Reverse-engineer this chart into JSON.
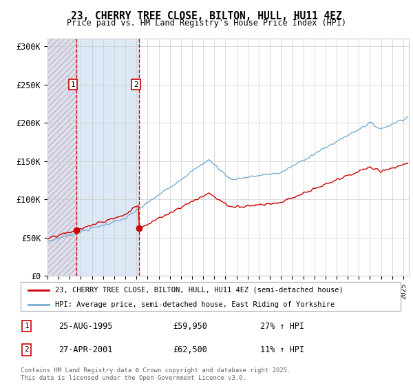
{
  "title": "23, CHERRY TREE CLOSE, BILTON, HULL, HU11 4EZ",
  "subtitle": "Price paid vs. HM Land Registry's House Price Index (HPI)",
  "ylim": [
    0,
    310000
  ],
  "yticks": [
    0,
    50000,
    100000,
    150000,
    200000,
    250000,
    300000
  ],
  "ytick_labels": [
    "£0",
    "£50K",
    "£100K",
    "£150K",
    "£200K",
    "£250K",
    "£300K"
  ],
  "sale1_year": 1995,
  "sale1_month": 8,
  "sale1_price": 59950,
  "sale1_date_str": "25-AUG-1995",
  "sale1_hpi_pct": "27% ↑ HPI",
  "sale2_year": 2001,
  "sale2_month": 4,
  "sale2_price": 62500,
  "sale2_date_str": "27-APR-2001",
  "sale2_hpi_pct": "11% ↑ HPI",
  "legend_line1": "23, CHERRY TREE CLOSE, BILTON, HULL, HU11 4EZ (semi-detached house)",
  "legend_line2": "HPI: Average price, semi-detached house, East Riding of Yorkshire",
  "footnote": "Contains HM Land Registry data © Crown copyright and database right 2025.\nThis data is licensed under the Open Government Licence v3.0.",
  "red_line_color": "#cc0000",
  "blue_line_color": "#7aadd4",
  "hatch_bg_color": "#e0e0ec",
  "sale_region_color": "#dce8f5",
  "hatch_pattern": "////",
  "hatch_edge_color": "#b8b8cc"
}
